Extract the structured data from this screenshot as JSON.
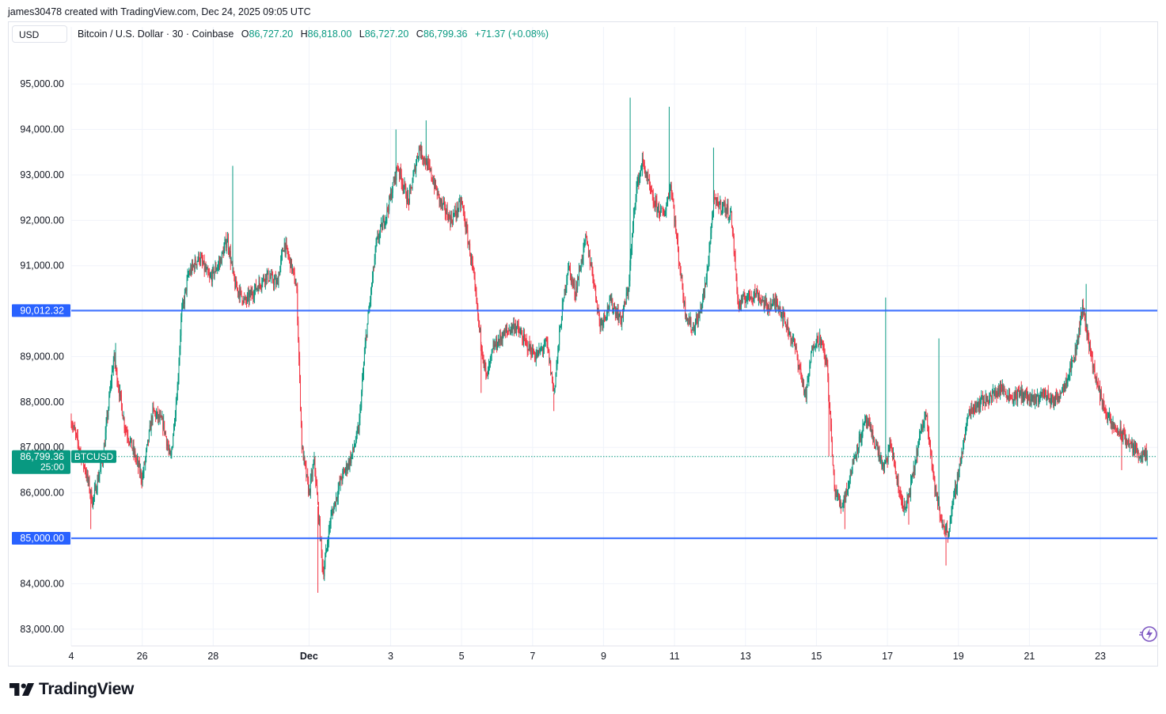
{
  "header": {
    "attribution": "james30478 created with TradingView.com, Dec 24, 2025 09:05 UTC",
    "currency": "USD",
    "symbol_desc": "Bitcoin / U.S. Dollar · 30 · Coinbase",
    "o_label": "O",
    "o_value": "86,727.20",
    "h_label": "H",
    "h_value": "86,818.00",
    "l_label": "L",
    "l_value": "86,727.20",
    "c_label": "C",
    "c_value": "86,799.36",
    "change": "+71.37 (+0.08%)"
  },
  "branding": {
    "logo_text": "TradingView",
    "quick_icon": "lightning-icon"
  },
  "colors": {
    "up": "#089981",
    "down": "#f23645",
    "hline": "#2962ff",
    "last": "#089981",
    "grid": "#f0f3fa"
  },
  "chart_data": {
    "type": "candlestick",
    "title": "Bitcoin / U.S. Dollar · 30 · Coinbase",
    "ylim": [
      82700,
      95700
    ],
    "y_ticks": [
      {
        "value": 95000,
        "label": "95,000.00"
      },
      {
        "value": 94000,
        "label": "94,000.00"
      },
      {
        "value": 93000,
        "label": "93,000.00"
      },
      {
        "value": 92000,
        "label": "92,000.00"
      },
      {
        "value": 91000,
        "label": "91,000.00"
      },
      {
        "value": 89000,
        "label": "89,000.00"
      },
      {
        "value": 88000,
        "label": "88,000.00"
      },
      {
        "value": 87000,
        "label": "87,000.00"
      },
      {
        "value": 86000,
        "label": "86,000.00"
      },
      {
        "value": 84000,
        "label": "84,000.00"
      },
      {
        "value": 83000,
        "label": "83,000.00"
      }
    ],
    "x_ticks": [
      {
        "day": 0,
        "label": "4",
        "bold": false
      },
      {
        "day": 2,
        "label": "26",
        "bold": false
      },
      {
        "day": 4,
        "label": "28",
        "bold": false
      },
      {
        "day": 6.7,
        "label": "Dec",
        "bold": true
      },
      {
        "day": 9,
        "label": "3",
        "bold": false
      },
      {
        "day": 11,
        "label": "5",
        "bold": false
      },
      {
        "day": 13,
        "label": "7",
        "bold": false
      },
      {
        "day": 15,
        "label": "9",
        "bold": false
      },
      {
        "day": 17,
        "label": "11",
        "bold": false
      },
      {
        "day": 19,
        "label": "13",
        "bold": false
      },
      {
        "day": 21,
        "label": "15",
        "bold": false
      },
      {
        "day": 23,
        "label": "17",
        "bold": false
      },
      {
        "day": 25,
        "label": "19",
        "bold": false
      },
      {
        "day": 27,
        "label": "21",
        "bold": false
      },
      {
        "day": 29,
        "label": "23",
        "bold": false
      }
    ],
    "x_range": [
      0,
      30.4
    ],
    "horizontal_lines": [
      {
        "price": 90012.32,
        "label": "90,012.32"
      },
      {
        "price": 85000.0,
        "label": "85,000.00"
      }
    ],
    "last_price": {
      "price": 86799.36,
      "label": "86,799.36",
      "countdown": "25:00",
      "symbol": "BTCUSD"
    },
    "price_path": [
      [
        0.0,
        87600
      ],
      [
        0.4,
        86500
      ],
      [
        0.6,
        85800
      ],
      [
        0.9,
        86800
      ],
      [
        1.1,
        88300
      ],
      [
        1.2,
        89000
      ],
      [
        1.5,
        87500
      ],
      [
        1.8,
        86800
      ],
      [
        2.0,
        86300
      ],
      [
        2.3,
        87800
      ],
      [
        2.6,
        87500
      ],
      [
        2.8,
        86700
      ],
      [
        3.0,
        88400
      ],
      [
        3.1,
        89900
      ],
      [
        3.3,
        90800
      ],
      [
        3.6,
        91200
      ],
      [
        3.9,
        90700
      ],
      [
        4.2,
        91100
      ],
      [
        4.4,
        91600
      ],
      [
        4.6,
        90600
      ],
      [
        4.9,
        90200
      ],
      [
        5.2,
        90500
      ],
      [
        5.5,
        90800
      ],
      [
        5.8,
        90600
      ],
      [
        6.0,
        91500
      ],
      [
        6.2,
        91000
      ],
      [
        6.35,
        90500
      ],
      [
        6.5,
        87000
      ],
      [
        6.7,
        86000
      ],
      [
        6.85,
        86700
      ],
      [
        7.0,
        85200
      ],
      [
        7.1,
        84200
      ],
      [
        7.3,
        85400
      ],
      [
        7.6,
        86300
      ],
      [
        7.9,
        86800
      ],
      [
        8.1,
        87400
      ],
      [
        8.3,
        89400
      ],
      [
        8.6,
        91500
      ],
      [
        8.9,
        92200
      ],
      [
        9.2,
        93200
      ],
      [
        9.5,
        92400
      ],
      [
        9.8,
        93600
      ],
      [
        10.1,
        93100
      ],
      [
        10.4,
        92400
      ],
      [
        10.7,
        92000
      ],
      [
        11.0,
        92400
      ],
      [
        11.3,
        91000
      ],
      [
        11.5,
        89600
      ],
      [
        11.7,
        88500
      ],
      [
        11.9,
        89200
      ],
      [
        12.2,
        89500
      ],
      [
        12.5,
        89700
      ],
      [
        12.8,
        89300
      ],
      [
        13.1,
        89000
      ],
      [
        13.4,
        89300
      ],
      [
        13.6,
        88200
      ],
      [
        13.8,
        89800
      ],
      [
        14.0,
        91000
      ],
      [
        14.2,
        90400
      ],
      [
        14.5,
        91600
      ],
      [
        14.7,
        90800
      ],
      [
        14.9,
        89700
      ],
      [
        15.2,
        90200
      ],
      [
        15.5,
        89800
      ],
      [
        15.7,
        90500
      ],
      [
        15.9,
        92600
      ],
      [
        16.1,
        93300
      ],
      [
        16.4,
        92400
      ],
      [
        16.7,
        92100
      ],
      [
        16.9,
        92800
      ],
      [
        17.1,
        91300
      ],
      [
        17.3,
        90000
      ],
      [
        17.5,
        89600
      ],
      [
        17.7,
        89900
      ],
      [
        17.9,
        90700
      ],
      [
        18.1,
        92400
      ],
      [
        18.4,
        92300
      ],
      [
        18.6,
        92100
      ],
      [
        18.8,
        90100
      ],
      [
        19.0,
        90300
      ],
      [
        19.3,
        90400
      ],
      [
        19.6,
        90100
      ],
      [
        19.9,
        90200
      ],
      [
        20.1,
        89800
      ],
      [
        20.4,
        89200
      ],
      [
        20.7,
        88100
      ],
      [
        20.9,
        89300
      ],
      [
        21.1,
        89400
      ],
      [
        21.3,
        88800
      ],
      [
        21.5,
        86100
      ],
      [
        21.7,
        85700
      ],
      [
        21.9,
        86200
      ],
      [
        22.1,
        86900
      ],
      [
        22.4,
        87600
      ],
      [
        22.7,
        87000
      ],
      [
        22.9,
        86500
      ],
      [
        23.1,
        87100
      ],
      [
        23.3,
        86100
      ],
      [
        23.5,
        85600
      ],
      [
        23.7,
        86300
      ],
      [
        23.9,
        87200
      ],
      [
        24.1,
        87800
      ],
      [
        24.3,
        86300
      ],
      [
        24.5,
        85400
      ],
      [
        24.7,
        85100
      ],
      [
        24.9,
        86000
      ],
      [
        25.1,
        86900
      ],
      [
        25.3,
        87800
      ],
      [
        25.6,
        88000
      ],
      [
        25.9,
        88100
      ],
      [
        26.2,
        88300
      ],
      [
        26.5,
        88100
      ],
      [
        26.8,
        88200
      ],
      [
        27.1,
        88000
      ],
      [
        27.4,
        88200
      ],
      [
        27.7,
        88000
      ],
      [
        28.0,
        88400
      ],
      [
        28.3,
        89100
      ],
      [
        28.5,
        90100
      ],
      [
        28.7,
        89200
      ],
      [
        28.9,
        88400
      ],
      [
        29.1,
        87900
      ],
      [
        29.3,
        87500
      ],
      [
        29.6,
        87300
      ],
      [
        29.9,
        87000
      ],
      [
        30.2,
        86800
      ],
      [
        30.35,
        86800
      ]
    ],
    "wick_extremes": [
      [
        0.55,
        85200
      ],
      [
        1.25,
        89300
      ],
      [
        4.55,
        93200
      ],
      [
        6.95,
        83800
      ],
      [
        9.15,
        94000
      ],
      [
        10.0,
        94200
      ],
      [
        11.3,
        90900
      ],
      [
        11.55,
        88200
      ],
      [
        13.6,
        87800
      ],
      [
        15.75,
        94700
      ],
      [
        16.85,
        94500
      ],
      [
        18.1,
        93600
      ],
      [
        21.35,
        86800
      ],
      [
        21.8,
        85200
      ],
      [
        22.95,
        90300
      ],
      [
        23.6,
        85300
      ],
      [
        24.65,
        84400
      ],
      [
        24.45,
        89400
      ],
      [
        28.6,
        90600
      ],
      [
        29.6,
        86500
      ]
    ]
  }
}
